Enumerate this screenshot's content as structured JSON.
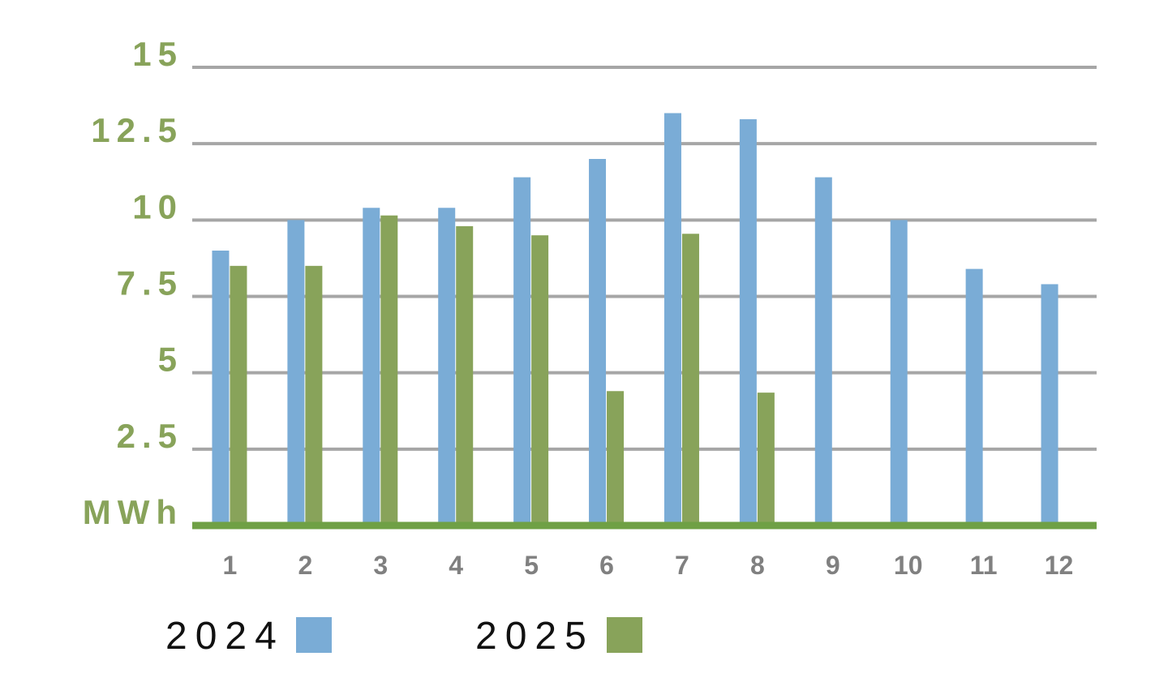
{
  "chart_data": {
    "type": "bar",
    "categories": [
      "1",
      "2",
      "3",
      "4",
      "5",
      "6",
      "7",
      "8",
      "9",
      "10",
      "11",
      "12"
    ],
    "series": [
      {
        "name": "2024",
        "color": "#7aacd6",
        "values": [
          9.0,
          10.0,
          10.4,
          10.4,
          11.4,
          12.0,
          13.5,
          13.3,
          11.4,
          10.0,
          8.4,
          7.9
        ]
      },
      {
        "name": "2025",
        "color": "#88a35a",
        "values": [
          8.5,
          8.5,
          10.15,
          9.8,
          9.5,
          4.4,
          9.55,
          4.35,
          null,
          null,
          null,
          null
        ]
      }
    ],
    "yticks": [
      "MWh",
      "2.5",
      "5",
      "7.5",
      "10",
      "12.5",
      "15"
    ],
    "ylim": [
      0,
      15
    ],
    "grid": true,
    "legend": "bottom-left",
    "colors": {
      "axis_label": "#88a35a",
      "x_tick": "#808080",
      "gridline": "#a6a6a6",
      "baseline": "#6fa045"
    }
  }
}
